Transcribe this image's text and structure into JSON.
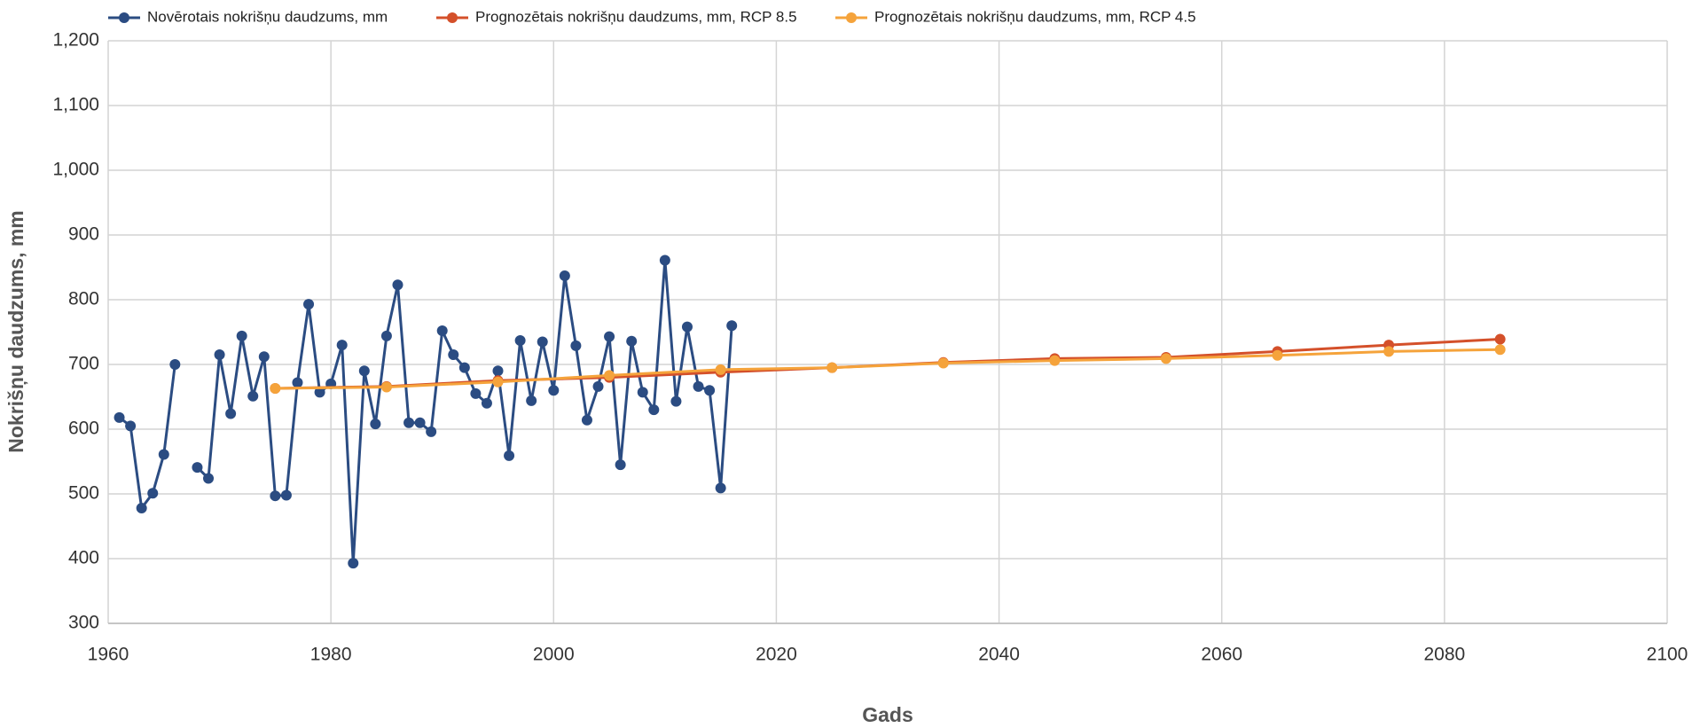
{
  "chart_data": {
    "type": "line",
    "xlabel": "Gads",
    "ylabel": "Nokrišņu daudzums, mm",
    "xlim": [
      1960,
      2100
    ],
    "xticks": [
      1960,
      1980,
      2000,
      2020,
      2040,
      2060,
      2080,
      2100
    ],
    "ylim": [
      300,
      1200
    ],
    "yticks": [
      300,
      400,
      500,
      600,
      700,
      800,
      900,
      {
        "value": 1000,
        "label": "1,000"
      },
      {
        "value": 1100,
        "label": "1,100"
      },
      {
        "value": 1200,
        "label": "1,200"
      }
    ],
    "grid": true,
    "legend": "top",
    "series": [
      {
        "name": "Novērotais nokrišņu daudzums, mm",
        "color": "#2b4c82",
        "x": [
          1961,
          1962,
          1963,
          1964,
          1965,
          1966,
          1967,
          1968,
          1969,
          1970,
          1971,
          1972,
          1973,
          1974,
          1975,
          1976,
          1977,
          1978,
          1979,
          1980,
          1981,
          1982,
          1983,
          1984,
          1985,
          1986,
          1987,
          1988,
          1989,
          1990,
          1991,
          1992,
          1993,
          1994,
          1995,
          1996,
          1997,
          1998,
          1999,
          2000,
          2001,
          2002,
          2003,
          2004,
          2005,
          2006,
          2007,
          2008,
          2009,
          2010,
          2011,
          2012,
          2013,
          2014,
          2015,
          2016
        ],
        "values": [
          618,
          605,
          478,
          501,
          561,
          700,
          null,
          541,
          524,
          715,
          624,
          744,
          651,
          712,
          497,
          498,
          672,
          793,
          657,
          670,
          730,
          393,
          690,
          608,
          744,
          823,
          610,
          610,
          596,
          752,
          715,
          695,
          655,
          640,
          690,
          559,
          737,
          644,
          735,
          660,
          837,
          729,
          614,
          666,
          743,
          545,
          736,
          657,
          630,
          861,
          643,
          758,
          666,
          660,
          509,
          760
        ]
      },
      {
        "name": "Prognozētais nokrišņu daudzums, mm, RCP 8.5",
        "color": "#d4502a",
        "x": [
          1975,
          1985,
          1995,
          2005,
          2015,
          2025,
          2035,
          2045,
          2055,
          2065,
          2075,
          2085
        ],
        "values": [
          663,
          666,
          675,
          680,
          688,
          695,
          703,
          709,
          711,
          720,
          730,
          739
        ]
      },
      {
        "name": "Prognozētais nokrišņu daudzums, mm, RCP 4.5",
        "color": "#f5a33b",
        "x": [
          1975,
          1985,
          1995,
          2005,
          2015,
          2025,
          2035,
          2045,
          2055,
          2065,
          2075,
          2085
        ],
        "values": [
          663,
          665,
          673,
          683,
          692,
          695,
          702,
          706,
          709,
          714,
          720,
          723
        ]
      }
    ]
  }
}
